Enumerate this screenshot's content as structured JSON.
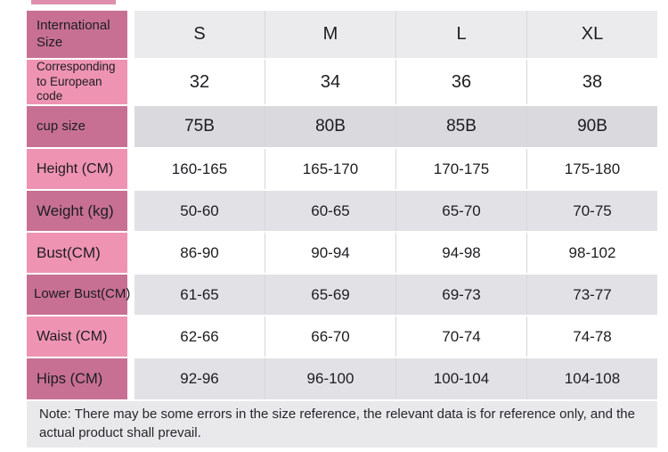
{
  "chart_data": {
    "type": "table",
    "columns": [
      "S",
      "M",
      "L",
      "XL"
    ],
    "rows": [
      {
        "label": "International Size",
        "values": [
          "S",
          "M",
          "L",
          "XL"
        ]
      },
      {
        "label": "Corresponding to European code",
        "values": [
          "32",
          "34",
          "36",
          "38"
        ]
      },
      {
        "label": "cup size",
        "values": [
          "75B",
          "80B",
          "85B",
          "90B"
        ]
      },
      {
        "label": "Height (CM)",
        "values": [
          "160-165",
          "165-170",
          "170-175",
          "175-180"
        ]
      },
      {
        "label": "Weight (kg)",
        "values": [
          "50-60",
          "60-65",
          "65-70",
          "70-75"
        ]
      },
      {
        "label": "Bust(CM)",
        "values": [
          "86-90",
          "90-94",
          "94-98",
          "98-102"
        ]
      },
      {
        "label": "Lower Bust(CM)",
        "values": [
          "61-65",
          "65-69",
          "69-73",
          "73-77"
        ]
      },
      {
        "label": "Waist (CM)",
        "values": [
          "62-66",
          "66-70",
          "70-74",
          "74-78"
        ]
      },
      {
        "label": "Hips (CM)",
        "values": [
          "92-96",
          "96-100",
          "100-104",
          "104-108"
        ]
      }
    ]
  },
  "note": {
    "text": "Note: There may be some errors in the size reference, the relevant data is for reference only, and the actual product shall prevail."
  },
  "colors": {
    "pink_dark": "#c77094",
    "pink_light": "#ef93b2",
    "gray_light": "#ebebee",
    "gray_dark": "#d9d9de",
    "gray_mid": "#e2e2e6",
    "note_bg": "#e9e9ec",
    "divider": "#d7d7db",
    "strip": "#df8fae",
    "text": "#1d1d20"
  }
}
